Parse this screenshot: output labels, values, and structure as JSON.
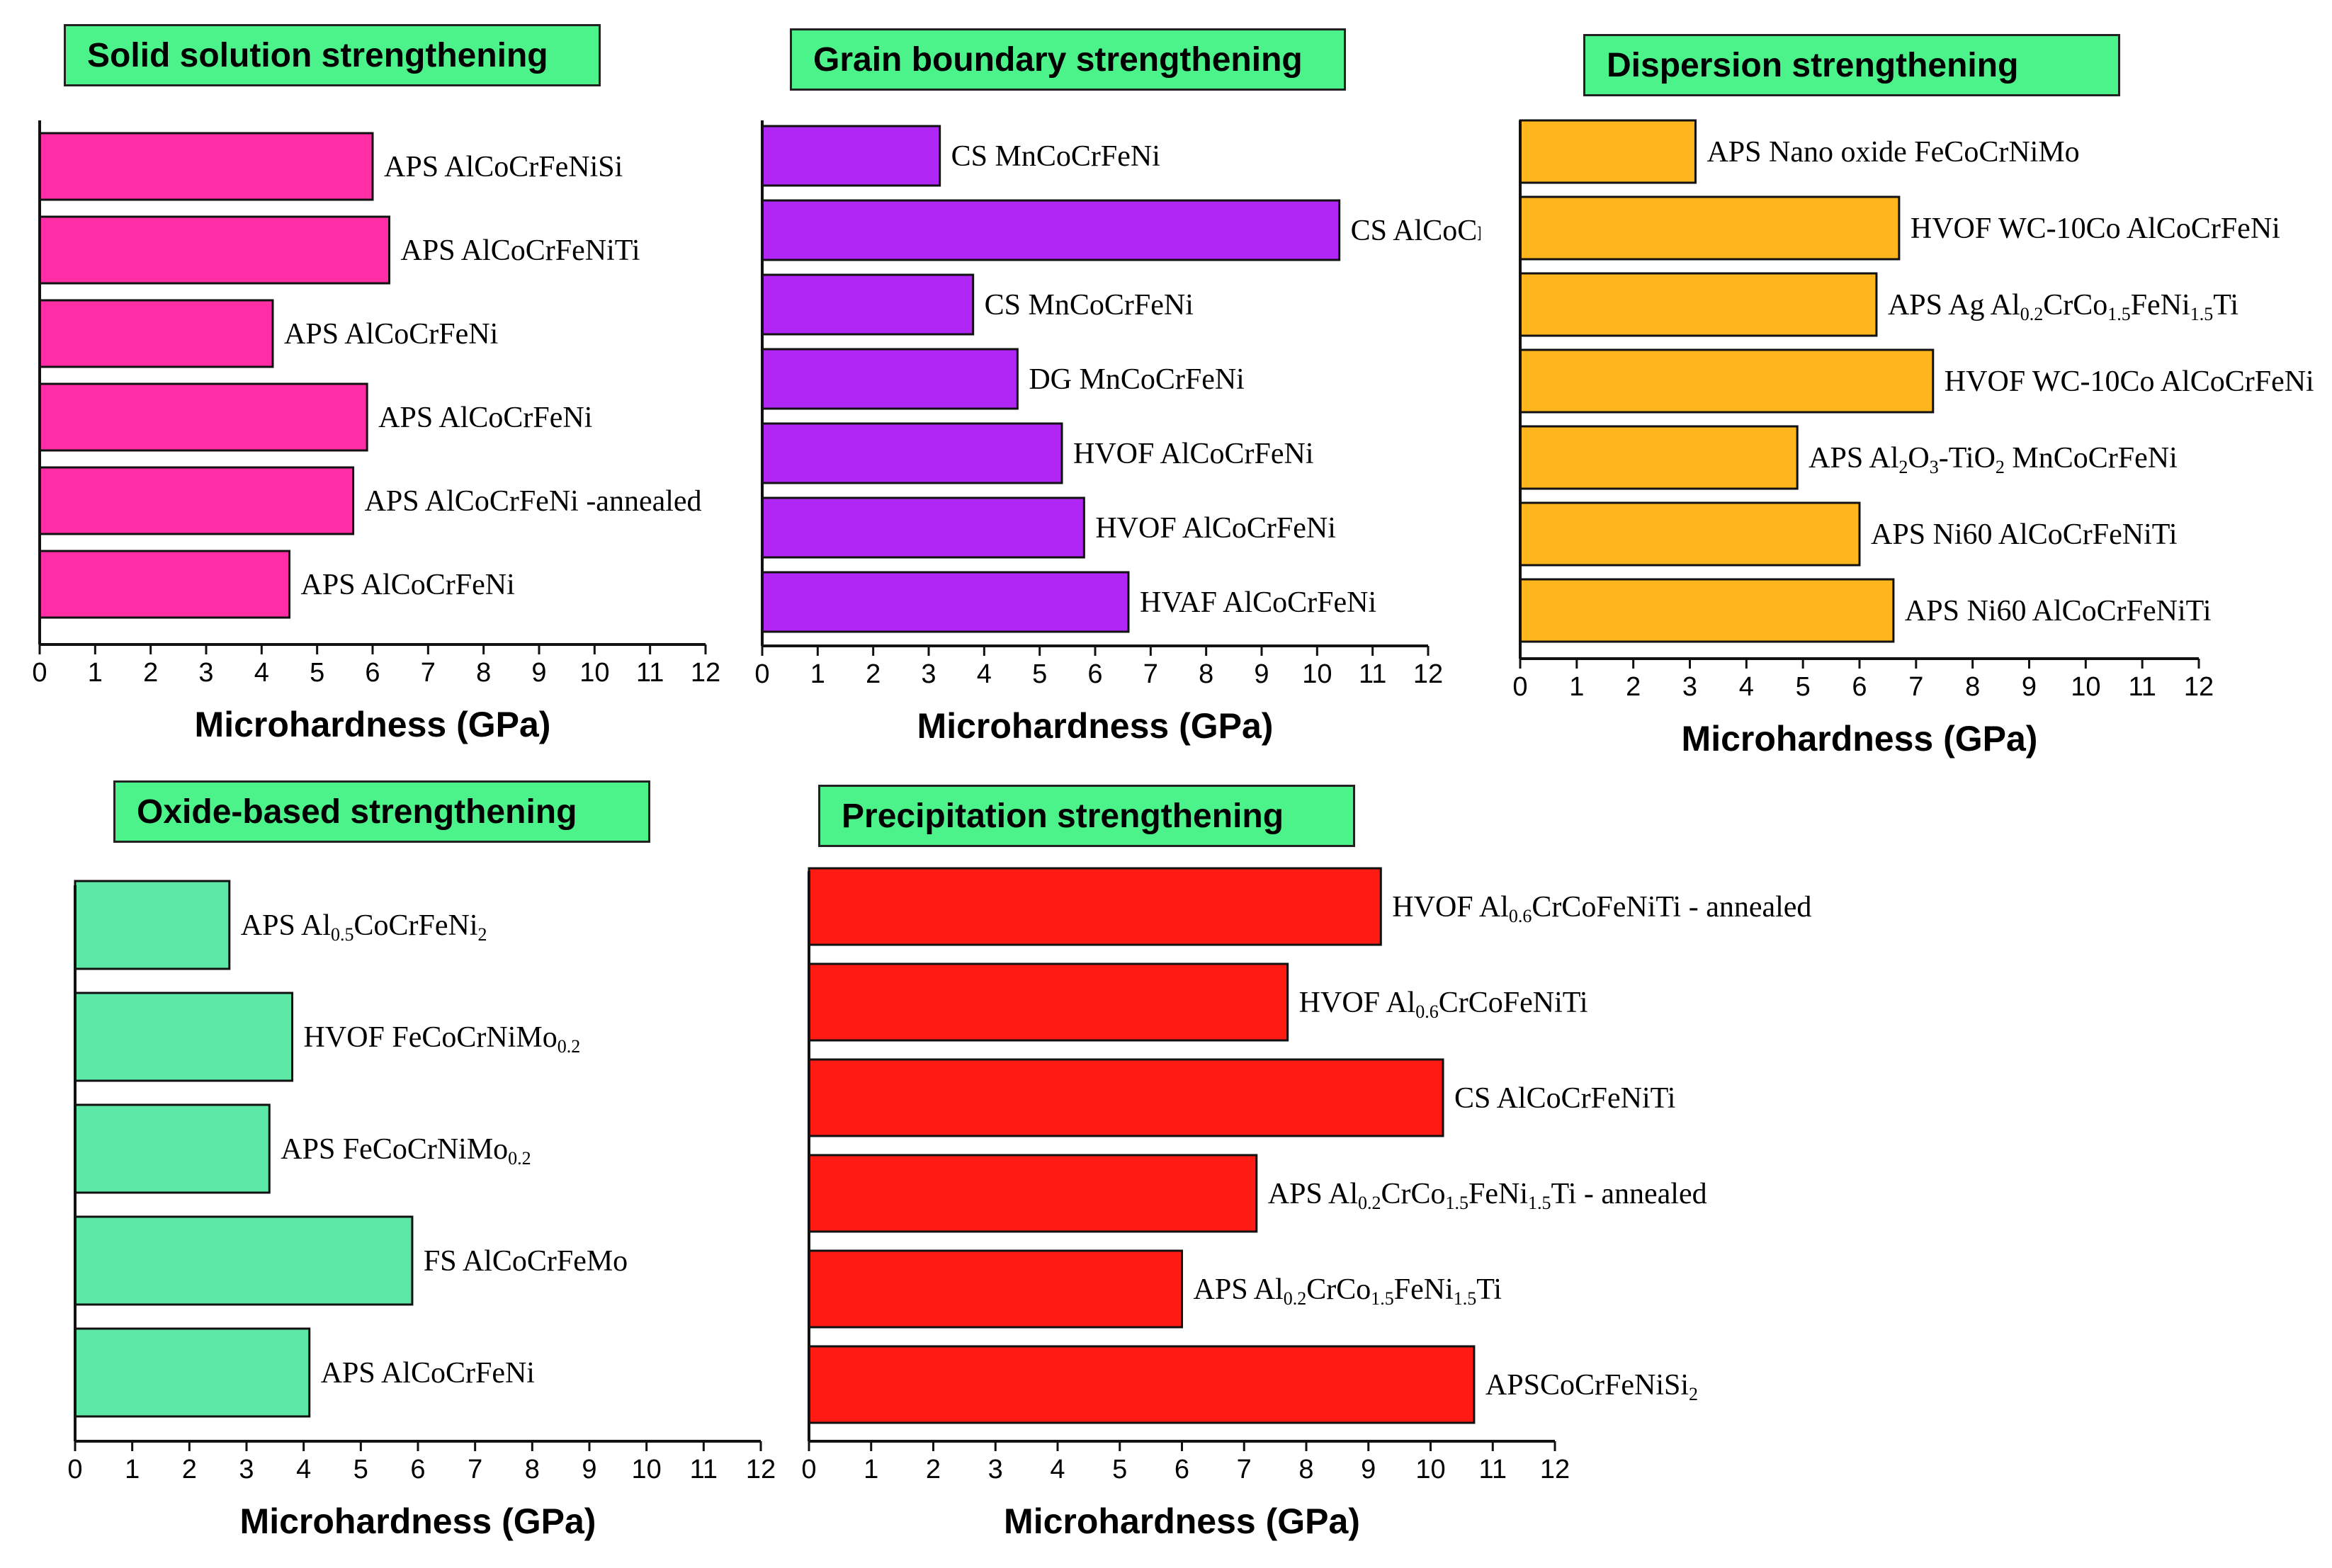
{
  "chart_data": [
    {
      "type": "bar",
      "orientation": "horizontal",
      "title": "Solid solution strengthening",
      "color": "#ff2ea6",
      "categories": [
        "APS AlCoCrFeNiSi",
        "APS AlCoCrFeNiTi",
        "APS AlCoCrFeNi",
        "APS AlCoCrFeNi",
        "APS AlCoCrFeNi -annealed",
        "APS AlCoCrFeNi"
      ],
      "values": [
        6.0,
        6.3,
        4.2,
        5.9,
        5.65,
        4.5
      ],
      "xlabel": "Microhardness (GPa)",
      "xlim": [
        0,
        12
      ],
      "xticks": [
        "0",
        "1",
        "2",
        "3",
        "4",
        "5",
        "6",
        "7",
        "8",
        "9",
        "10",
        "11",
        "12"
      ]
    },
    {
      "type": "bar",
      "orientation": "horizontal",
      "title": "Grain boundary strengthening",
      "color": "#b026f5",
      "categories": [
        "CS MnCoCrFeNi",
        "CS AlCoCrFeNiTi",
        "CS MnCoCrFeNi",
        "DG MnCoCrFeNi",
        "HVOF AlCoCrFeNi",
        "HVOF AlCoCrFeNi",
        "HVAF AlCoCrFeNi"
      ],
      "values": [
        3.2,
        10.4,
        3.8,
        4.6,
        5.4,
        5.8,
        6.6
      ],
      "xlabel": "Microhardness (GPa)",
      "xlim": [
        0,
        12
      ],
      "xticks": [
        "0",
        "1",
        "2",
        "3",
        "4",
        "5",
        "6",
        "7",
        "8",
        "9",
        "10",
        "11",
        "12"
      ]
    },
    {
      "type": "bar",
      "orientation": "horizontal",
      "title": "Dispersion strengthening",
      "color": "#ffb51e",
      "categories": [
        "APS Nano oxide FeCoCrNiMo",
        "HVOF WC-10Co AlCoCrFeNi",
        "APS Ag Al0.2CrCo1.5FeNi1.5Ti",
        "HVOF WC-10Co AlCoCrFeNi",
        "APS Al2O3-TiO2 MnCoCrFeNi",
        "APS Ni60 AlCoCrFeNiTi",
        "APS Ni60 AlCoCrFeNiTi"
      ],
      "values": [
        3.1,
        6.7,
        6.3,
        7.3,
        4.9,
        6.0,
        6.6
      ],
      "xlabel": "Microhardness (GPa)",
      "xlim": [
        0,
        12
      ],
      "xticks": [
        "0",
        "1",
        "2",
        "3",
        "4",
        "5",
        "6",
        "7",
        "8",
        "9",
        "10",
        "11",
        "12"
      ]
    },
    {
      "type": "bar",
      "orientation": "horizontal",
      "title": "Oxide-based strengthening",
      "color": "#5ee8a8",
      "categories": [
        "APS Al0.5CoCrFeNi2",
        "HVOF FeCoCrNiMo0.2",
        "APS FeCoCrNiMo0.2",
        "FS AlCoCrFeMo",
        "APS AlCoCrFeNi"
      ],
      "values": [
        2.7,
        3.8,
        3.4,
        5.9,
        4.1
      ],
      "xlabel": "Microhardness (GPa)",
      "xlim": [
        0,
        12
      ],
      "xticks": [
        "0",
        "1",
        "2",
        "3",
        "4",
        "5",
        "6",
        "7",
        "8",
        "9",
        "10",
        "11",
        "12"
      ]
    },
    {
      "type": "bar",
      "orientation": "horizontal",
      "title": "Precipitation strengthening",
      "color": "#ff1a14",
      "categories": [
        "HVOF Al0.6CrCoFeNiTi - annealed",
        "HVOF Al0.6CrCoFeNiTi",
        "CS AlCoCrFeNiTi",
        "APS Al0.2CrCo1.5FeNi1.5Ti - annealed",
        "APS Al0.2CrCo1.5FeNi1.5Ti",
        "APSCoCrFeNiSi2"
      ],
      "values": [
        9.2,
        7.7,
        10.2,
        7.2,
        6.0,
        10.7
      ],
      "xlabel": "Microhardness (GPa)",
      "xlim": [
        0,
        12
      ],
      "xticks": [
        "0",
        "1",
        "2",
        "3",
        "4",
        "5",
        "6",
        "7",
        "8",
        "9",
        "10",
        "11",
        "12"
      ]
    }
  ]
}
